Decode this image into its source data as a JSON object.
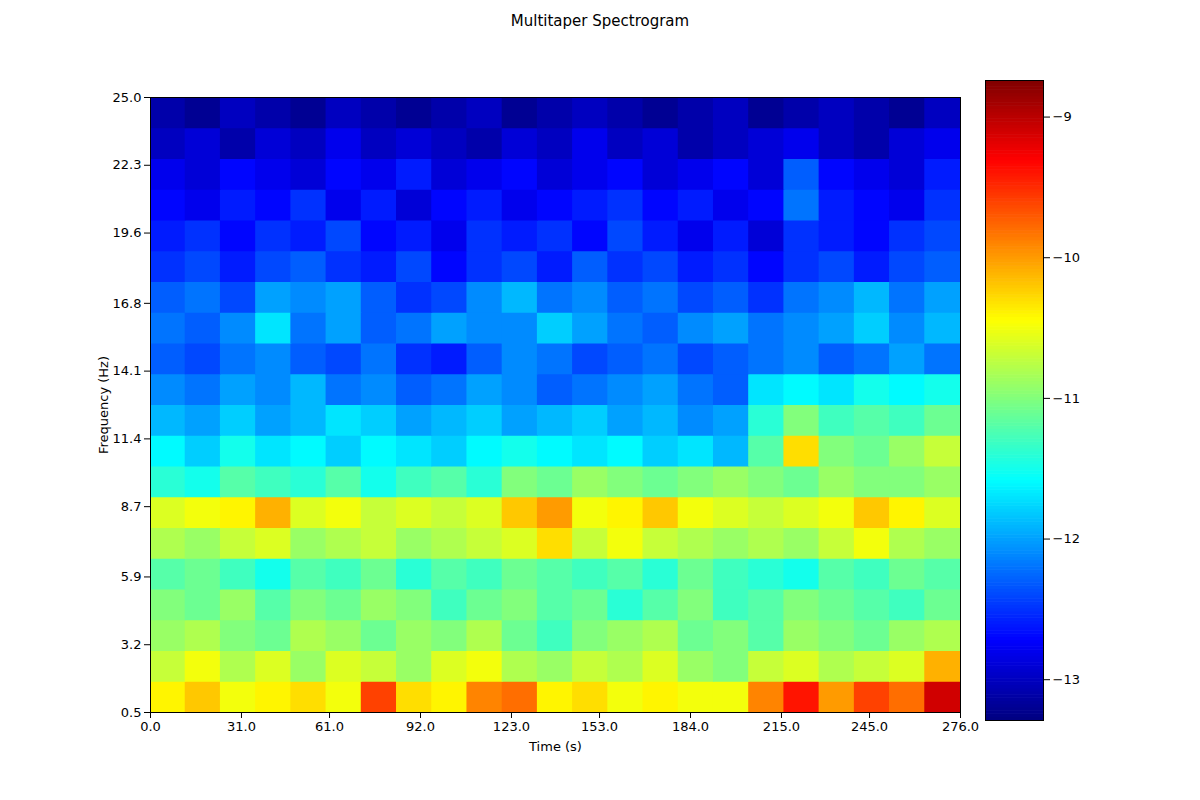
{
  "chart_data": {
    "type": "heatmap",
    "title": "Multitaper Spectrogram",
    "xlabel": "Time (s)",
    "ylabel": "Frequency (Hz)",
    "xlim": [
      0,
      276
    ],
    "ylim": [
      0.5,
      25
    ],
    "xticks": [
      {
        "value": 0,
        "label": "0.0"
      },
      {
        "value": 31,
        "label": "31.0"
      },
      {
        "value": 61,
        "label": "61.0"
      },
      {
        "value": 92,
        "label": "92.0"
      },
      {
        "value": 123,
        "label": "123.0"
      },
      {
        "value": 153,
        "label": "153.0"
      },
      {
        "value": 184,
        "label": "184.0"
      },
      {
        "value": 215,
        "label": "215.0"
      },
      {
        "value": 245,
        "label": "245.0"
      },
      {
        "value": 276,
        "label": "276.0"
      }
    ],
    "yticks": [
      0.5,
      3.2,
      5.9,
      8.7,
      11.4,
      14.1,
      16.8,
      19.6,
      22.3,
      {
        "value": 25,
        "label": "25.0"
      }
    ],
    "x_bins": [
      0,
      12,
      24,
      36,
      48,
      60,
      72,
      84,
      96,
      108,
      120,
      132,
      144,
      156,
      168,
      180,
      192,
      204,
      216,
      228,
      240,
      252,
      264,
      276
    ],
    "y_bins": [
      0.5,
      1.725,
      2.95,
      4.175,
      5.4,
      6.625,
      7.85,
      9.075,
      10.3,
      11.525,
      12.75,
      13.975,
      15.2,
      16.425,
      17.65,
      18.875,
      20.1,
      21.325,
      22.55,
      23.775,
      25
    ],
    "values": [
      [
        -10.4,
        -10.2,
        -10.5,
        -10.4,
        -10.3,
        -10.5,
        -9.6,
        -10.3,
        -10.4,
        -9.9,
        -9.8,
        -10.4,
        -10.3,
        -10.5,
        -10.4,
        -10.5,
        -10.5,
        -9.9,
        -9.4,
        -10.0,
        -9.6,
        -9.8,
        -9.1
      ],
      [
        -10.7,
        -10.5,
        -10.8,
        -10.6,
        -10.9,
        -10.6,
        -10.7,
        -10.9,
        -10.6,
        -10.5,
        -10.8,
        -10.9,
        -10.7,
        -10.8,
        -10.6,
        -10.9,
        -11.0,
        -10.7,
        -10.6,
        -10.8,
        -10.7,
        -10.6,
        -10.1
      ],
      [
        -10.9,
        -10.8,
        -11.0,
        -11.1,
        -10.8,
        -10.9,
        -11.1,
        -10.9,
        -11.0,
        -10.8,
        -11.1,
        -11.3,
        -11.0,
        -10.9,
        -10.8,
        -11.1,
        -11.0,
        -11.2,
        -10.9,
        -11.0,
        -11.1,
        -10.9,
        -10.8
      ],
      [
        -11.0,
        -11.1,
        -10.9,
        -11.2,
        -11.0,
        -11.1,
        -10.9,
        -11.0,
        -11.3,
        -11.1,
        -11.0,
        -11.2,
        -11.1,
        -11.4,
        -11.2,
        -11.0,
        -11.3,
        -11.2,
        -11.0,
        -11.1,
        -11.2,
        -11.3,
        -11.1
      ],
      [
        -11.2,
        -11.1,
        -11.3,
        -11.5,
        -11.2,
        -11.3,
        -11.1,
        -11.4,
        -11.2,
        -11.3,
        -11.1,
        -11.2,
        -11.3,
        -11.2,
        -11.4,
        -11.1,
        -11.3,
        -11.4,
        -11.5,
        -11.2,
        -11.3,
        -11.1,
        -11.2
      ],
      [
        -10.8,
        -10.9,
        -10.7,
        -10.6,
        -10.9,
        -10.8,
        -10.7,
        -10.9,
        -10.8,
        -10.7,
        -10.6,
        -10.3,
        -10.7,
        -10.5,
        -10.7,
        -10.8,
        -10.9,
        -10.8,
        -10.9,
        -10.7,
        -10.5,
        -10.8,
        -10.9
      ],
      [
        -10.6,
        -10.5,
        -10.4,
        -10.1,
        -10.6,
        -10.5,
        -10.7,
        -10.6,
        -10.7,
        -10.6,
        -10.2,
        -10.0,
        -10.5,
        -10.4,
        -10.2,
        -10.5,
        -10.6,
        -10.7,
        -10.6,
        -10.5,
        -10.2,
        -10.4,
        -10.6
      ],
      [
        -11.4,
        -11.5,
        -11.2,
        -11.3,
        -11.4,
        -11.2,
        -11.5,
        -11.3,
        -11.2,
        -11.4,
        -11.0,
        -11.1,
        -10.9,
        -11.0,
        -11.1,
        -11.0,
        -10.9,
        -11.0,
        -11.1,
        -10.9,
        -11.0,
        -11.0,
        -10.9
      ],
      [
        -11.6,
        -11.8,
        -11.5,
        -11.7,
        -11.6,
        -11.8,
        -11.6,
        -11.7,
        -11.8,
        -11.6,
        -11.5,
        -11.6,
        -11.7,
        -11.6,
        -11.8,
        -11.7,
        -11.9,
        -11.2,
        -10.3,
        -11.0,
        -11.1,
        -10.9,
        -10.7
      ],
      [
        -11.9,
        -12.0,
        -11.8,
        -12.0,
        -11.9,
        -11.7,
        -11.8,
        -12.0,
        -11.9,
        -11.8,
        -12.0,
        -11.9,
        -11.8,
        -12.0,
        -11.9,
        -12.1,
        -12.0,
        -11.4,
        -11.0,
        -11.3,
        -11.2,
        -11.3,
        -11.1
      ],
      [
        -12.1,
        -12.2,
        -12.0,
        -12.1,
        -11.9,
        -12.2,
        -12.1,
        -12.3,
        -12.2,
        -12.0,
        -12.1,
        -12.3,
        -12.2,
        -12.1,
        -12.0,
        -12.2,
        -12.3,
        -11.7,
        -11.6,
        -11.7,
        -11.5,
        -11.6,
        -11.5
      ],
      [
        -12.3,
        -12.4,
        -12.2,
        -12.1,
        -12.3,
        -12.4,
        -12.2,
        -12.5,
        -12.6,
        -12.3,
        -12.1,
        -12.2,
        -12.4,
        -12.3,
        -12.2,
        -12.4,
        -12.3,
        -12.2,
        -12.1,
        -12.3,
        -12.2,
        -12.0,
        -12.2
      ],
      [
        -12.2,
        -12.3,
        -12.1,
        -11.7,
        -12.2,
        -12.0,
        -12.3,
        -12.2,
        -12.0,
        -12.1,
        -12.1,
        -11.8,
        -12.0,
        -12.2,
        -12.3,
        -12.1,
        -12.0,
        -12.2,
        -12.1,
        -12.0,
        -11.8,
        -12.1,
        -11.9
      ],
      [
        -12.3,
        -12.2,
        -12.4,
        -12.0,
        -12.1,
        -12.0,
        -12.3,
        -12.5,
        -12.4,
        -12.1,
        -11.9,
        -12.2,
        -12.1,
        -12.3,
        -12.2,
        -12.4,
        -12.3,
        -12.5,
        -12.2,
        -12.1,
        -11.9,
        -12.2,
        -12.0
      ],
      [
        -12.5,
        -12.4,
        -12.6,
        -12.4,
        -12.3,
        -12.5,
        -12.6,
        -12.4,
        -12.7,
        -12.5,
        -12.4,
        -12.6,
        -12.3,
        -12.5,
        -12.4,
        -12.6,
        -12.5,
        -12.7,
        -12.5,
        -12.4,
        -12.6,
        -12.4,
        -12.3
      ],
      [
        -12.6,
        -12.5,
        -12.7,
        -12.5,
        -12.6,
        -12.4,
        -12.7,
        -12.6,
        -12.8,
        -12.5,
        -12.6,
        -12.5,
        -12.7,
        -12.4,
        -12.6,
        -12.8,
        -12.6,
        -12.9,
        -12.5,
        -12.6,
        -12.7,
        -12.5,
        -12.4
      ],
      [
        -12.7,
        -12.8,
        -12.6,
        -12.7,
        -12.5,
        -12.8,
        -12.6,
        -12.9,
        -12.7,
        -12.6,
        -12.8,
        -12.7,
        -12.6,
        -12.5,
        -12.7,
        -12.6,
        -12.8,
        -12.7,
        -12.2,
        -12.6,
        -12.7,
        -12.8,
        -12.5
      ],
      [
        -12.8,
        -12.9,
        -12.7,
        -12.8,
        -12.9,
        -12.7,
        -12.8,
        -12.6,
        -12.9,
        -12.8,
        -12.7,
        -12.9,
        -12.8,
        -12.7,
        -12.9,
        -12.8,
        -12.7,
        -12.9,
        -12.3,
        -12.7,
        -12.8,
        -12.9,
        -12.6
      ],
      [
        -13.0,
        -12.9,
        -13.1,
        -12.9,
        -13.0,
        -12.8,
        -13.0,
        -12.9,
        -13.0,
        -13.1,
        -12.9,
        -13.0,
        -12.8,
        -13.0,
        -12.9,
        -13.1,
        -13.0,
        -12.9,
        -12.8,
        -13.0,
        -13.1,
        -12.9,
        -12.8
      ],
      [
        -13.1,
        -13.2,
        -13.0,
        -13.1,
        -13.2,
        -13.0,
        -13.1,
        -13.2,
        -13.1,
        -13.0,
        -13.2,
        -13.1,
        -13.0,
        -13.1,
        -13.2,
        -13.1,
        -13.0,
        -13.2,
        -13.1,
        -13.0,
        -13.1,
        -13.2,
        -13.0
      ]
    ],
    "colorbar": {
      "range": [
        -13.29,
        -8.74
      ],
      "ticks": [
        {
          "value": -13,
          "label": "−13"
        },
        {
          "value": -12,
          "label": "−12"
        },
        {
          "value": -11,
          "label": "−11"
        },
        {
          "value": -10,
          "label": "−10"
        },
        {
          "value": -9,
          "label": "−9"
        }
      ]
    }
  }
}
